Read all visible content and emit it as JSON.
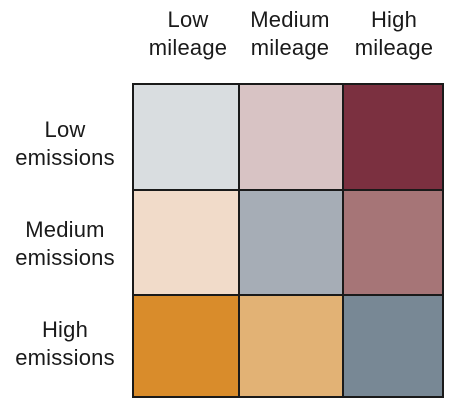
{
  "chart_data": {
    "type": "heatmap",
    "title": "",
    "columns": [
      {
        "lines": [
          "Low",
          "mileage"
        ]
      },
      {
        "lines": [
          "Medium",
          "mileage"
        ]
      },
      {
        "lines": [
          "High",
          "mileage"
        ]
      }
    ],
    "rows": [
      {
        "lines": [
          "Low",
          "emissions"
        ]
      },
      {
        "lines": [
          "Medium",
          "emissions"
        ]
      },
      {
        "lines": [
          "High",
          "emissions"
        ]
      }
    ],
    "cells": [
      [
        "#d9dde0",
        "#d8c3c4",
        "#7b3040"
      ],
      [
        "#f1dbc9",
        "#a6adb6",
        "#a67577"
      ],
      [
        "#d98c2b",
        "#e2b275",
        "#788895"
      ]
    ],
    "legend": "none",
    "grid": true
  }
}
